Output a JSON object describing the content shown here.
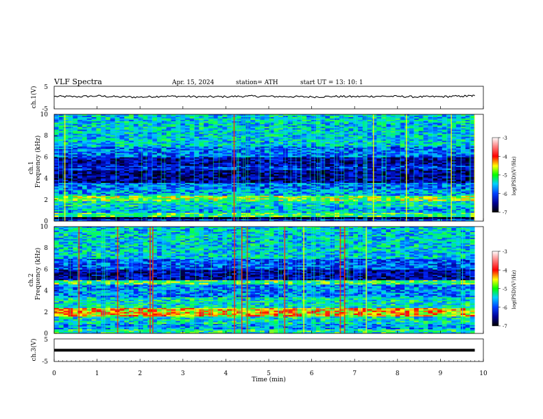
{
  "header": {
    "title": "VLF  Spectra",
    "date": "Apr. 15, 2024",
    "station": "station= ATH",
    "start": "start  UT  =    13: 10: 1"
  },
  "colorbar": {
    "label": "log(PSD)(V²/Hz)",
    "ticks": [
      "-3",
      "-4",
      "-5",
      "-6",
      "-7"
    ],
    "stops": [
      "#8b0000",
      "#ff0000",
      "#ffff00",
      "#00ff00",
      "#00c8ff",
      "#0000ff",
      "#000060",
      "#000000"
    ]
  },
  "chart_data": [
    {
      "type": "line",
      "name": "ch1-waveform",
      "ylabel": "ch.1(V)",
      "ylim": [
        -5,
        5
      ],
      "yticks": [
        "5",
        "-5"
      ],
      "x": [
        0,
        0.5,
        1,
        1.5,
        2,
        2.5,
        3,
        3.5,
        4,
        4.5,
        5,
        5.5,
        6,
        6.5,
        7,
        7.5,
        8,
        8.5,
        9,
        9.5,
        9.8
      ],
      "y": [
        0.5,
        0.4,
        0.7,
        0.3,
        0.2,
        0.6,
        0.5,
        0.3,
        0.4,
        0.6,
        0.5,
        0.4,
        0.3,
        0.5,
        0.4,
        0.6,
        0.5,
        0.3,
        0.4,
        0.6,
        0.8
      ]
    },
    {
      "type": "heatmap",
      "name": "ch1-spectrogram",
      "ylabel": "ch.1\nFrequency  (kHz)",
      "ylim": [
        0,
        10
      ],
      "yticks": [
        "0",
        "2",
        "4",
        "6",
        "8",
        "10"
      ],
      "zlim": [
        -7,
        -3
      ],
      "bands_khz": [
        {
          "f0": 0.0,
          "f1": 0.2,
          "level": -6.0
        },
        {
          "f0": 0.2,
          "f1": 0.4,
          "level": -6.9
        },
        {
          "f0": 0.4,
          "f1": 0.8,
          "level": -5.0
        },
        {
          "f0": 0.8,
          "f1": 1.4,
          "level": -5.5
        },
        {
          "f0": 1.4,
          "f1": 1.9,
          "level": -5.3
        },
        {
          "f0": 1.9,
          "f1": 2.4,
          "level": -4.8
        },
        {
          "f0": 2.4,
          "f1": 3.0,
          "level": -5.6
        },
        {
          "f0": 3.0,
          "f1": 3.6,
          "level": -5.8
        },
        {
          "f0": 3.6,
          "f1": 4.8,
          "level": -6.5
        },
        {
          "f0": 4.8,
          "f1": 5.2,
          "level": -6.1
        },
        {
          "f0": 5.2,
          "f1": 6.0,
          "level": -6.4
        },
        {
          "f0": 6.0,
          "f1": 7.0,
          "level": -5.8
        },
        {
          "f0": 7.0,
          "f1": 10.0,
          "level": -5.4
        }
      ]
    },
    {
      "type": "heatmap",
      "name": "ch2-spectrogram",
      "ylabel": "ch.2\nFrequency  (kHz)",
      "ylim": [
        0,
        10
      ],
      "yticks": [
        "0",
        "2",
        "4",
        "6",
        "8",
        "10"
      ],
      "zlim": [
        -7,
        -3
      ],
      "bands_khz": [
        {
          "f0": 0.0,
          "f1": 0.4,
          "level": -5.2
        },
        {
          "f0": 0.4,
          "f1": 0.9,
          "level": -5.6
        },
        {
          "f0": 0.9,
          "f1": 1.6,
          "level": -5.3
        },
        {
          "f0": 1.6,
          "f1": 2.4,
          "level": -4.4
        },
        {
          "f0": 2.4,
          "f1": 3.4,
          "level": -5.3
        },
        {
          "f0": 3.4,
          "f1": 4.6,
          "level": -5.7
        },
        {
          "f0": 4.6,
          "f1": 5.0,
          "level": -5.0
        },
        {
          "f0": 5.0,
          "f1": 6.0,
          "level": -6.4
        },
        {
          "f0": 6.0,
          "f1": 7.0,
          "level": -5.9
        },
        {
          "f0": 7.0,
          "f1": 10.0,
          "level": -5.4
        }
      ]
    },
    {
      "type": "line",
      "name": "ch3-waveform",
      "ylabel": "ch.3(V)",
      "ylim": [
        -5,
        5
      ],
      "yticks": [
        "5",
        "-5"
      ],
      "x": [
        0,
        9.8
      ],
      "y": [
        0,
        0
      ]
    }
  ],
  "xaxis": {
    "label": "Time  (min)",
    "lim": [
      0,
      10
    ],
    "ticks": [
      "0",
      "1",
      "2",
      "3",
      "4",
      "5",
      "6",
      "7",
      "8",
      "9",
      "10"
    ]
  }
}
